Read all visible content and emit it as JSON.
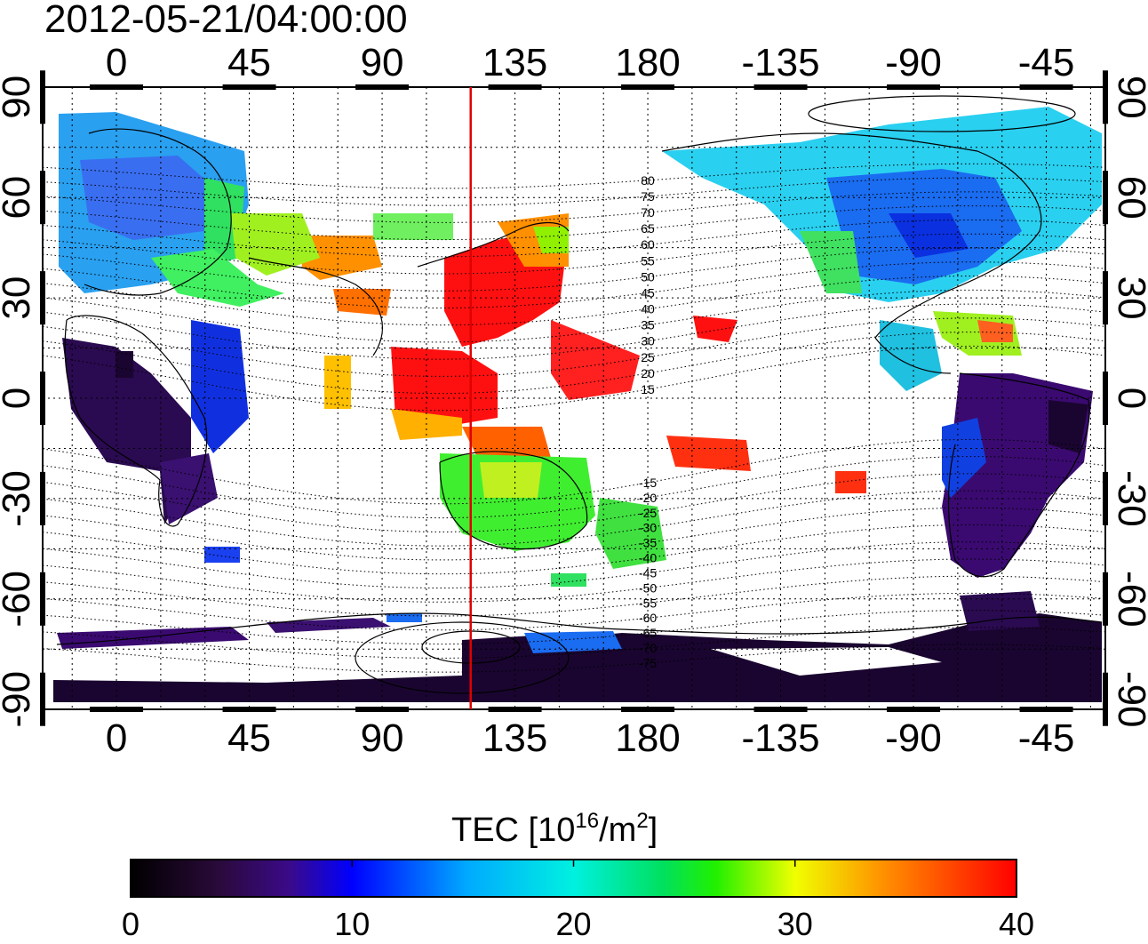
{
  "title": "2012-05-21/04:00:00",
  "colorbar": {
    "label_prefix": "TEC  [10",
    "label_exp1": "16",
    "label_mid": "/m",
    "label_exp2": "2",
    "label_suffix": "]",
    "min": 0,
    "max": 40,
    "ticks": [
      "0",
      "10",
      "20",
      "30",
      "40"
    ],
    "colormap": "black-purple-blue-cyan-green-yellow-red"
  },
  "axes": {
    "x_ticks": [
      "0",
      "45",
      "90",
      "135",
      "180",
      "-135",
      "-90",
      "-45"
    ],
    "y_ticks_left": [
      "90",
      "60",
      "30",
      "0",
      "-30",
      "-60",
      "-90"
    ],
    "y_ticks_right": [
      "90",
      "60",
      "30",
      "0",
      "-30",
      "-60",
      "-90"
    ],
    "lon_range": [
      -25,
      335
    ],
    "lat_range": [
      -93,
      93
    ],
    "grid": true,
    "red_meridian_lon": 120
  },
  "dip_lat_labels": [
    "80",
    "75",
    "70",
    "65",
    "60",
    "55",
    "50",
    "45",
    "40",
    "35",
    "30",
    "25",
    "20",
    "15",
    "-15",
    "-20",
    "-25",
    "-30",
    "-35",
    "-40",
    "-45",
    "-50",
    "-55",
    "-60",
    "-65",
    "-70",
    "-75"
  ],
  "colors": {
    "meridian": "#e00000",
    "frame": "#000000",
    "background": "#ffffff"
  }
}
